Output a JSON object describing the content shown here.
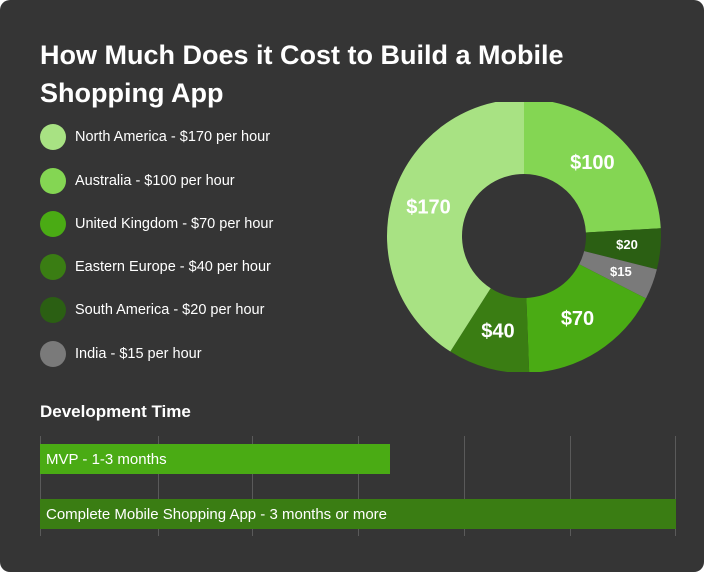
{
  "title": "How Much Does it Cost to Build a Mobile Shopping App",
  "legend": [
    {
      "label": "North America - $170 per hour",
      "color": "#a8e283"
    },
    {
      "label": "Australia - $100 per hour",
      "color": "#84d653"
    },
    {
      "label": "United Kingdom - $70 per hour",
      "color": "#4aab14"
    },
    {
      "label": "Eastern Europe - $40 per hour",
      "color": "#3a7d13"
    },
    {
      "label": "South America - $20 per hour",
      "color": "#2b5f13"
    },
    {
      "label": "India - $15 per hour",
      "color": "#7a7a7a"
    }
  ],
  "chart_data": [
    {
      "type": "pie",
      "categories": [
        "Australia",
        "South America",
        "India",
        "United Kingdom",
        "Eastern Europe",
        "North America"
      ],
      "values": [
        100,
        20,
        15,
        70,
        40,
        170
      ],
      "labels": [
        "$100",
        "$20",
        "$15",
        "$70",
        "$40",
        "$170"
      ],
      "colors": [
        "#84d653",
        "#2b5f13",
        "#7a7a7a",
        "#4aab14",
        "#3a7d13",
        "#a8e283"
      ],
      "donut": true
    },
    {
      "type": "bar",
      "title": "Development Time",
      "categories": [
        "MVP - 1-3 months",
        "Complete Mobile Shopping App - 3 months or more"
      ],
      "values": [
        0.55,
        1.0
      ],
      "colors": [
        "#4aab14",
        "#3a7d13"
      ],
      "grid": true
    }
  ]
}
